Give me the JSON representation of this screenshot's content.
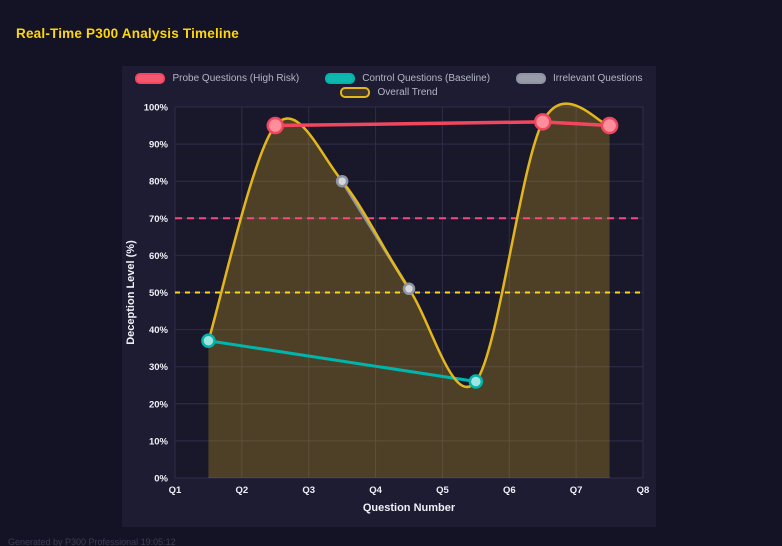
{
  "page": {
    "title": "Real-Time P300 Analysis Timeline",
    "footer": "Generated by P300 Professional  19:05:12"
  },
  "colors": {
    "page_bg": "#141326",
    "panel_bg": "#1d1c33",
    "plot_bg": "#19182b",
    "grid": "#2e2d49",
    "title": "#ffd60a",
    "tick_text": "#eef0f6",
    "legend_text": "#b4b6c4",
    "footer_text": "#3d3d54"
  },
  "chart_data": {
    "type": "line",
    "title": "Real-Time P300 Analysis Timeline",
    "xlabel": "Question Number",
    "ylabel": "Deception Level (%)",
    "x_ticks": [
      "Q1",
      "Q2",
      "Q3",
      "Q4",
      "Q5",
      "Q6",
      "Q7",
      "Q8"
    ],
    "x_range": [
      1,
      8
    ],
    "y_ticks": [
      "0%",
      "10%",
      "20%",
      "30%",
      "40%",
      "50%",
      "60%",
      "70%",
      "80%",
      "90%",
      "100%"
    ],
    "ylim": [
      0,
      100
    ],
    "grid": true,
    "legend_position": "top",
    "legend_rows": [
      [
        0,
        1,
        2
      ],
      [
        3
      ]
    ],
    "series": [
      {
        "name": "Probe Questions (High Risk)",
        "color": "#f2455e",
        "marker_fill": "#ff8e9c",
        "marker_radius": 7.5,
        "line_width": 3.5,
        "swatch_fill": "#f2586f",
        "points": [
          [
            2.5,
            95
          ],
          [
            6.5,
            96
          ],
          [
            7.5,
            95
          ]
        ]
      },
      {
        "name": "Control Questions (Baseline)",
        "color": "#00b5ab",
        "marker_fill": "#9fe5df",
        "marker_radius": 6,
        "line_width": 3,
        "swatch_fill": "#10b7ad",
        "points": [
          [
            1.5,
            37
          ],
          [
            5.5,
            26
          ]
        ]
      },
      {
        "name": "Irrelevant Questions",
        "color": "#9094a0",
        "marker_fill": "#d5d7dd",
        "marker_radius": 5,
        "line_width": 3,
        "swatch_fill": "#979baa",
        "points": [
          [
            3.5,
            80
          ],
          [
            4.5,
            51
          ]
        ]
      },
      {
        "name": "Overall Trend",
        "color": "#e3b71c",
        "smooth": true,
        "fill": "rgba(227,183,28,0.26)",
        "line_width": 2.5,
        "marker_radius": 0,
        "swatch_fill": "rgba(227,183,28,0.18)",
        "points": [
          [
            1.5,
            37
          ],
          [
            2.5,
            95
          ],
          [
            3.5,
            80
          ],
          [
            4.5,
            51
          ],
          [
            5.5,
            26
          ],
          [
            6.5,
            96
          ],
          [
            7.5,
            95
          ]
        ]
      }
    ],
    "thresholds": [
      {
        "value": 70,
        "color": "#f8487e",
        "dash": "7 5",
        "width": 2
      },
      {
        "value": 50,
        "color": "#ffd60a",
        "dash": "5 5",
        "width": 2
      }
    ]
  }
}
